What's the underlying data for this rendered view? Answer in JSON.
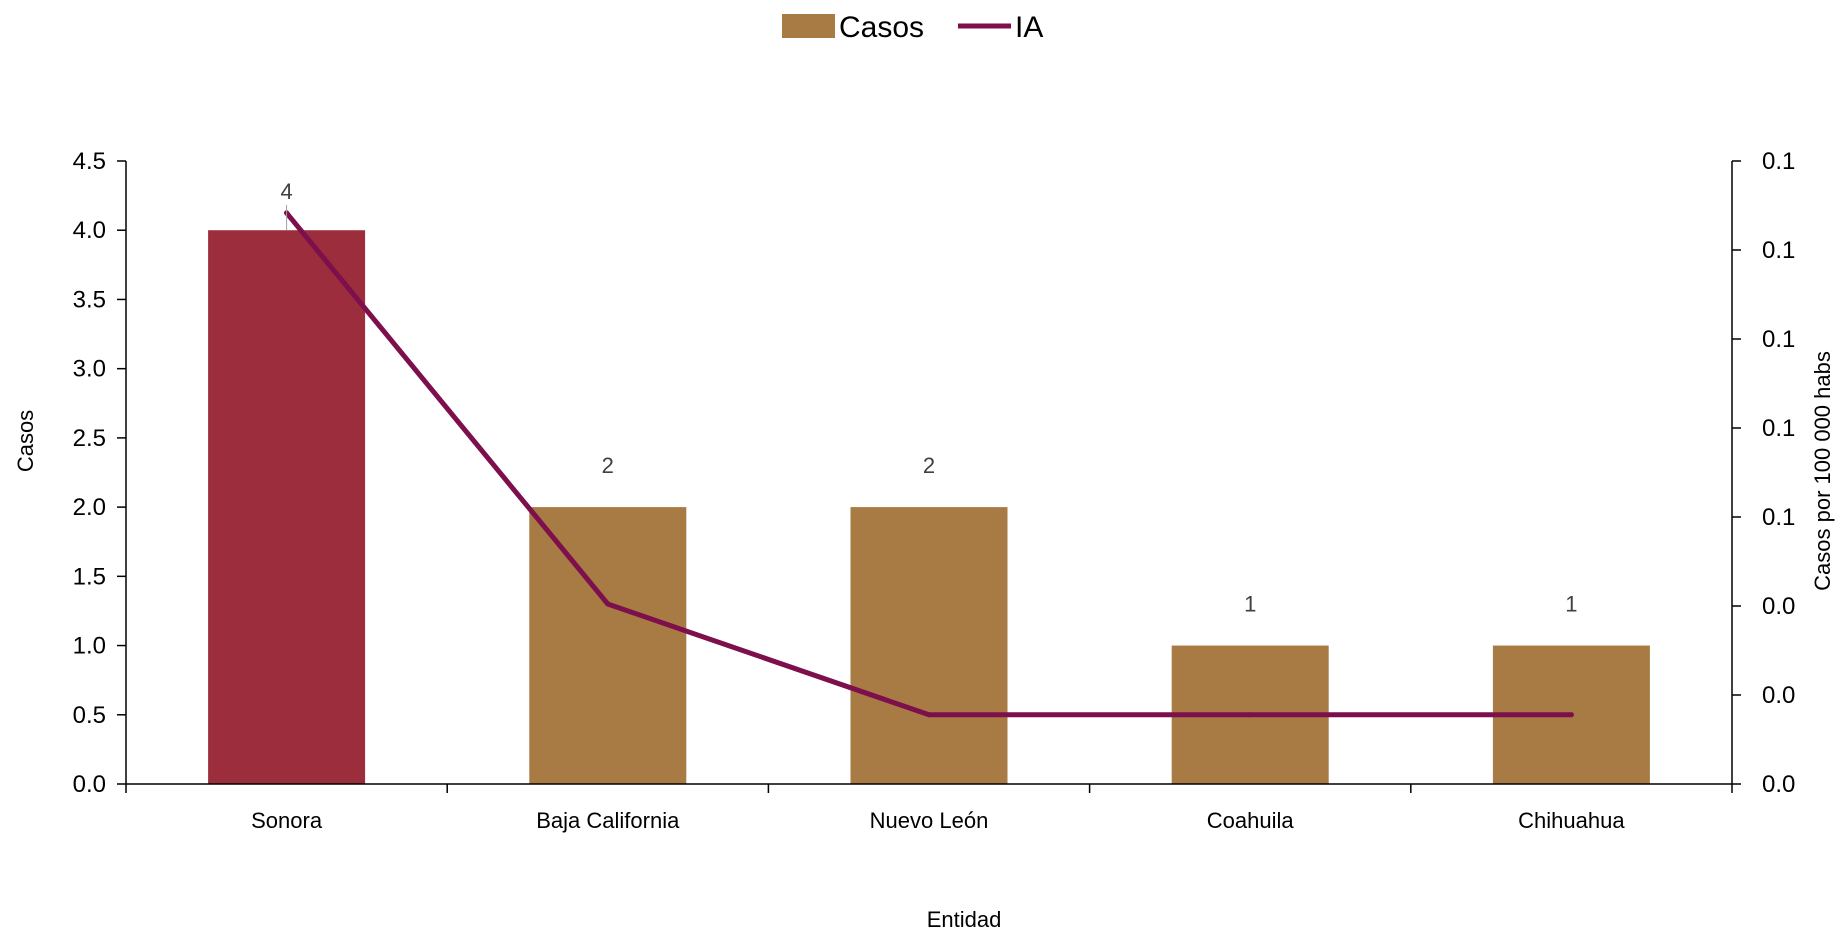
{
  "chart_data": {
    "type": "bar",
    "categories": [
      "Sonora",
      "Baja California",
      "Nuevo León",
      "Coahuila",
      "Chihuahua"
    ],
    "series": [
      {
        "name": "Casos",
        "type": "bar",
        "axis": "left",
        "values": [
          4,
          2,
          2,
          1,
          1
        ],
        "data_labels": [
          "4",
          "2",
          "2",
          "1",
          "1"
        ]
      },
      {
        "name": "IA",
        "type": "line",
        "axis": "right",
        "values": [
          0.165,
          0.052,
          0.02,
          0.02,
          0.02
        ]
      }
    ],
    "xlabel": "Entidad",
    "ylabel": "Casos",
    "y2label": "Casos por 100 000 habs",
    "ylim": [
      0,
      4.5
    ],
    "y_ticks": [
      "0.0",
      "0.5",
      "1.0",
      "1.5",
      "2.0",
      "2.5",
      "3.0",
      "3.5",
      "4.0",
      "4.5"
    ],
    "y2lim": [
      0,
      0.18
    ],
    "y2_ticks": [
      "0.0",
      "0.0",
      "0.0",
      "0.1",
      "0.1",
      "0.1",
      "0.1",
      "0.1"
    ],
    "grid": false,
    "legend_position": "top-center",
    "colors": {
      "bar": "#a87a44",
      "bar_highlight": "#9b2d3c",
      "line": "#7d0f4d",
      "axis": "#000000",
      "label": "#404040"
    },
    "highlight_index": 0
  }
}
